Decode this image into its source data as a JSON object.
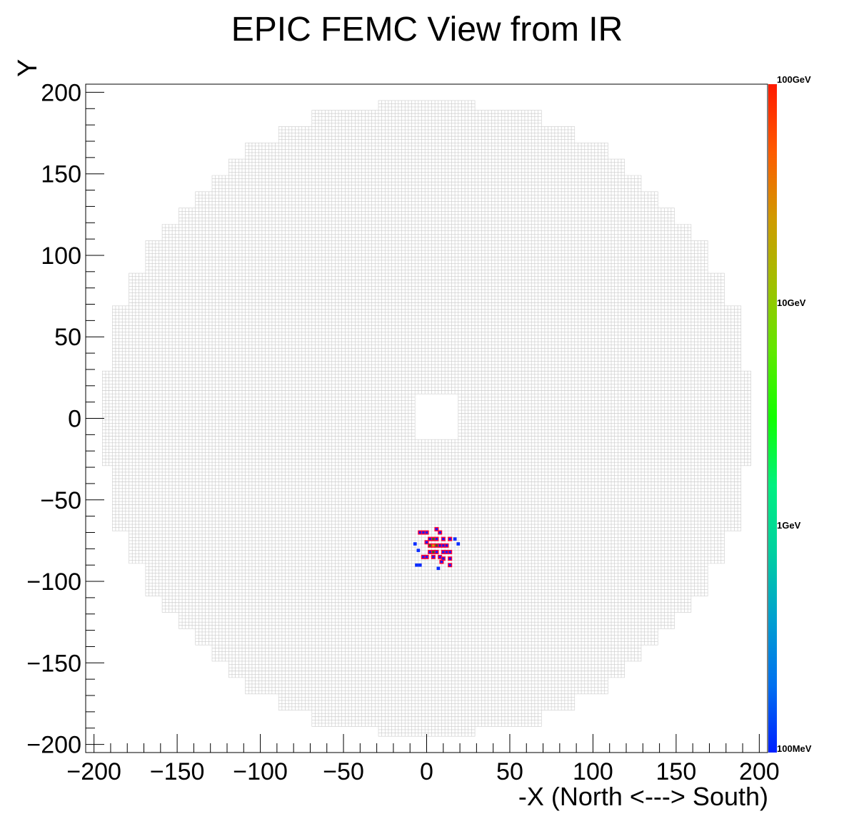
{
  "chart_data": {
    "type": "heatmap",
    "title": "EPIC FEMC View from IR",
    "xlabel": "-X (North <---> South)",
    "ylabel": "Y",
    "xlim": [
      -205,
      205
    ],
    "ylim": [
      -205,
      205
    ],
    "xticks": [
      -200,
      -150,
      -100,
      -50,
      0,
      50,
      100,
      150,
      200
    ],
    "yticks": [
      200,
      150,
      100,
      50,
      0,
      -50,
      -100,
      -150,
      -200
    ],
    "xtick_labels": [
      "−200",
      "−150",
      "−100",
      "−50",
      "0",
      "50",
      "100",
      "150",
      "200"
    ],
    "ytick_labels": [
      "200",
      "150",
      "100",
      "50",
      "0",
      "−50",
      "−100",
      "−150",
      "−200"
    ],
    "detector_outer_radius": 195,
    "beam_hole": {
      "x": [
        -7,
        20
      ],
      "y": [
        -14,
        15
      ]
    },
    "colorbar": {
      "scale": "log",
      "labels": [
        "100GeV",
        "10GeV",
        "1GeV",
        "100MeV"
      ],
      "colors": [
        "#ff1a00",
        "#ff5a00",
        "#d09a00",
        "#a0c000",
        "#60e800",
        "#10ff00",
        "#00f080",
        "#00d0a0",
        "#00a0d0",
        "#0070f0",
        "#0020ff"
      ]
    },
    "hits": [
      {
        "x": -4,
        "y": -70,
        "level": "low"
      },
      {
        "x": -2,
        "y": -70,
        "level": "low"
      },
      {
        "x": 0,
        "y": -70,
        "level": "low"
      },
      {
        "x": 6,
        "y": -68,
        "level": "low"
      },
      {
        "x": 8,
        "y": -70,
        "level": "low"
      },
      {
        "x": 2,
        "y": -74,
        "level": "low"
      },
      {
        "x": 4,
        "y": -74,
        "level": "mid"
      },
      {
        "x": 6,
        "y": -74,
        "level": "low"
      },
      {
        "x": 10,
        "y": -74,
        "level": "low"
      },
      {
        "x": 14,
        "y": -74,
        "level": "low"
      },
      {
        "x": 0,
        "y": -76,
        "level": "low"
      },
      {
        "x": 2,
        "y": -78,
        "level": "mid"
      },
      {
        "x": 4,
        "y": -78,
        "level": "high"
      },
      {
        "x": 6,
        "y": -78,
        "level": "mid"
      },
      {
        "x": 8,
        "y": -78,
        "level": "low"
      },
      {
        "x": 10,
        "y": -78,
        "level": "low"
      },
      {
        "x": 12,
        "y": -78,
        "level": "low"
      },
      {
        "x": 2,
        "y": -82,
        "level": "low"
      },
      {
        "x": 4,
        "y": -82,
        "level": "mid"
      },
      {
        "x": 6,
        "y": -82,
        "level": "low"
      },
      {
        "x": 10,
        "y": -82,
        "level": "low"
      },
      {
        "x": 12,
        "y": -82,
        "level": "low"
      },
      {
        "x": 14,
        "y": -82,
        "level": "low"
      },
      {
        "x": -2,
        "y": -85,
        "level": "low"
      },
      {
        "x": 0,
        "y": -85,
        "level": "low"
      },
      {
        "x": 4,
        "y": -85,
        "level": "low"
      },
      {
        "x": 8,
        "y": -85,
        "level": "low"
      },
      {
        "x": 10,
        "y": -86,
        "level": "low"
      },
      {
        "x": 14,
        "y": -86,
        "level": "low"
      },
      {
        "x": 9,
        "y": -88,
        "level": "low"
      },
      {
        "x": 14,
        "y": -90,
        "level": "low"
      },
      {
        "x": -6,
        "y": -90,
        "level": "faint"
      },
      {
        "x": -4,
        "y": -90,
        "level": "faint"
      },
      {
        "x": -7,
        "y": -77,
        "level": "faint"
      },
      {
        "x": -5,
        "y": -81,
        "level": "faint"
      },
      {
        "x": 17,
        "y": -74,
        "level": "faint"
      },
      {
        "x": 19,
        "y": -77,
        "level": "faint"
      },
      {
        "x": 7,
        "y": -92,
        "level": "faint"
      }
    ]
  }
}
